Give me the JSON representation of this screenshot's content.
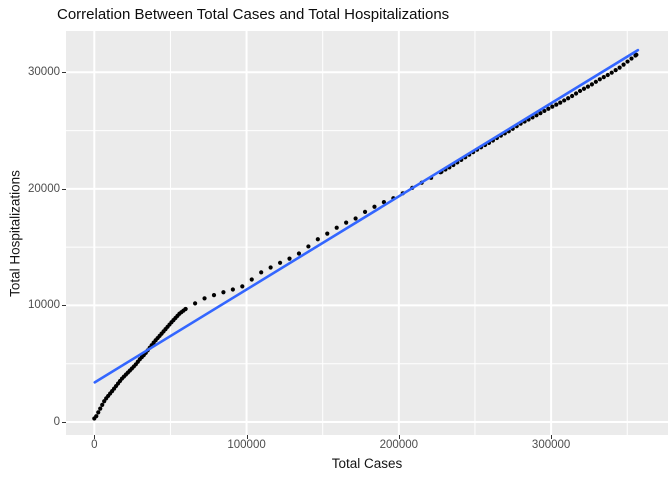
{
  "title": "Correlation Between Total Cases and Total Hospitalizations",
  "chart_data": {
    "type": "scatter",
    "title": "Correlation Between Total Cases and Total Hospitalizations",
    "xlabel": "Total Cases",
    "ylabel": "Total Hospitalizations",
    "x_ticks": [
      0,
      100000,
      200000,
      300000
    ],
    "y_ticks": [
      0,
      10000,
      20000,
      30000
    ],
    "x_minor_ticks": [
      50000,
      150000,
      250000,
      350000
    ],
    "y_minor_ticks": [
      5000,
      15000,
      25000
    ],
    "xlim": [
      -18500,
      377000
    ],
    "ylim": [
      -2100,
      33600
    ],
    "grid": true,
    "legend": "none",
    "panel_bg": "#EBEBEB",
    "grid_color": "#FFFFFF",
    "point_color": "#000000",
    "trend_line": {
      "name": "linear fit",
      "color": "#3366FF",
      "x1": 300,
      "y1": 3400,
      "x2": 357000,
      "y2": 31900
    },
    "points": [
      [
        500,
        300
      ],
      [
        2500,
        800
      ],
      [
        4500,
        1300
      ],
      [
        7000,
        1900
      ],
      [
        9500,
        2300
      ],
      [
        12000,
        2700
      ],
      [
        15000,
        3200
      ],
      [
        18000,
        3700
      ],
      [
        21000,
        4100
      ],
      [
        24000,
        4500
      ],
      [
        27000,
        4900
      ],
      [
        30000,
        5400
      ],
      [
        33000,
        5800
      ],
      [
        36000,
        6300
      ],
      [
        39500,
        6900
      ],
      [
        43000,
        7400
      ],
      [
        47000,
        8000
      ],
      [
        51000,
        8600
      ],
      [
        56000,
        9300
      ],
      [
        60000,
        9700
      ],
      [
        64000,
        10000
      ],
      [
        69000,
        10400
      ],
      [
        74000,
        10700
      ],
      [
        79000,
        10900
      ],
      [
        84000,
        11100
      ],
      [
        89000,
        11300
      ],
      [
        95000,
        11500
      ],
      [
        100000,
        11800
      ],
      [
        104000,
        12300
      ],
      [
        109000,
        12800
      ],
      [
        115000,
        13200
      ],
      [
        121000,
        13600
      ],
      [
        128000,
        14000
      ],
      [
        135000,
        14500
      ],
      [
        142000,
        15200
      ],
      [
        148000,
        15800
      ],
      [
        155000,
        16300
      ],
      [
        163000,
        17000
      ],
      [
        170000,
        17300
      ],
      [
        176000,
        17900
      ],
      [
        183000,
        18400
      ],
      [
        189000,
        18800
      ],
      [
        195000,
        19100
      ],
      [
        201000,
        19500
      ],
      [
        209000,
        20100
      ],
      [
        216000,
        20600
      ],
      [
        222000,
        21000
      ],
      [
        227000,
        21400
      ],
      [
        234000,
        21900
      ],
      [
        240000,
        22400
      ],
      [
        247000,
        23000
      ],
      [
        253000,
        23500
      ],
      [
        260000,
        24000
      ],
      [
        266000,
        24500
      ],
      [
        273000,
        25000
      ],
      [
        280000,
        25600
      ],
      [
        286000,
        26000
      ],
      [
        293000,
        26500
      ],
      [
        300000,
        27000
      ],
      [
        306000,
        27400
      ],
      [
        313000,
        27900
      ],
      [
        319000,
        28400
      ],
      [
        326000,
        28900
      ],
      [
        332000,
        29400
      ],
      [
        339000,
        29900
      ],
      [
        345000,
        30400
      ],
      [
        350000,
        30900
      ],
      [
        356000,
        31500
      ]
    ],
    "dot_density_segments": [
      {
        "from": 0,
        "to": 60000,
        "step": 1300
      },
      {
        "from": 60000,
        "to": 228000,
        "step": 6200
      },
      {
        "from": 228000,
        "to": 356000,
        "step": 2600
      }
    ]
  }
}
